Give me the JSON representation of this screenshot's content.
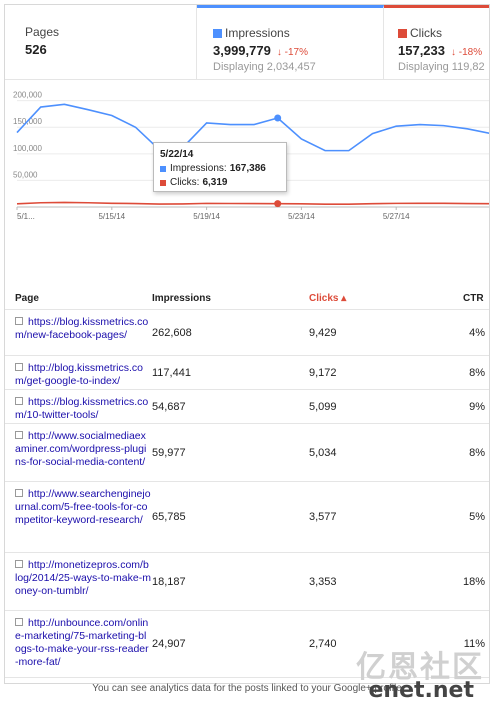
{
  "summary": {
    "pages": {
      "label": "Pages",
      "value": "526"
    },
    "impressions": {
      "label": "Impressions",
      "value": "3,999,779",
      "delta": "-17%",
      "displaying": "Displaying 2,034,457",
      "color": "#4d90fe"
    },
    "clicks": {
      "label": "Clicks",
      "value": "157,233",
      "delta": "-18%",
      "displaying": "Displaying 119,82",
      "color": "#dd4b39"
    }
  },
  "chart_data": {
    "type": "line",
    "x": [
      "5/11/14",
      "5/12/14",
      "5/13/14",
      "5/14/14",
      "5/15/14",
      "5/16/14",
      "5/17/14",
      "5/18/14",
      "5/19/14",
      "5/20/14",
      "5/21/14",
      "5/22/14",
      "5/23/14",
      "5/24/14",
      "5/25/14",
      "5/26/14",
      "5/27/14",
      "5/28/14",
      "5/29/14",
      "5/30/14",
      "5/31/14"
    ],
    "tick_labels": [
      "5/1...",
      "5/15/14",
      "5/19/14",
      "5/23/14",
      "5/27/14"
    ],
    "y_ticks": [
      "200,000",
      "150,000",
      "100,000",
      "50,000"
    ],
    "ylim": [
      0,
      220000
    ],
    "series": [
      {
        "name": "Impressions",
        "color": "#4d90fe",
        "values": [
          140000,
          188000,
          193000,
          183000,
          172000,
          150000,
          108000,
          112000,
          158000,
          155000,
          155000,
          167386,
          128000,
          106000,
          106000,
          138000,
          152000,
          155000,
          153000,
          147000,
          138000
        ]
      },
      {
        "name": "Clicks",
        "color": "#dd4b39",
        "values": [
          6000,
          8000,
          8500,
          8000,
          7000,
          6500,
          5500,
          5800,
          6800,
          6600,
          6400,
          6319,
          6000,
          5200,
          5300,
          6200,
          6800,
          7000,
          6900,
          6500,
          6200
        ]
      }
    ],
    "highlight_index": 11
  },
  "tooltip": {
    "date": "5/22/14",
    "impressions_label": "Impressions:",
    "impressions_value": "167,386",
    "clicks_label": "Clicks:",
    "clicks_value": "6,319"
  },
  "table": {
    "headers": {
      "page": "Page",
      "impressions": "Impressions",
      "clicks": "Clicks ▴",
      "ctr": "CTR"
    },
    "rows": [
      {
        "page": "https://blog.kissmetrics.com/new-facebook-pages/",
        "impressions": "262,608",
        "clicks": "9,429",
        "ctr": "4%"
      },
      {
        "page": "http://blog.kissmetrics.com/get-google-to-index/",
        "impressions": "117,441",
        "clicks": "9,172",
        "ctr": "8%"
      },
      {
        "page": "https://blog.kissmetrics.com/10-twitter-tools/",
        "impressions": "54,687",
        "clicks": "5,099",
        "ctr": "9%"
      },
      {
        "page": "http://www.socialmediaexaminer.com/wordpress-plugins-for-social-media-content/",
        "impressions": "59,977",
        "clicks": "5,034",
        "ctr": "8%"
      },
      {
        "page": "http://www.searchenginejournal.com/5-free-tools-for-competitor-keyword-research/",
        "impressions": "65,785",
        "clicks": "3,577",
        "ctr": "5%"
      },
      {
        "page": "http://monetizepros.com/blog/2014/25-ways-to-make-money-on-tumblr/",
        "impressions": "18,187",
        "clicks": "3,353",
        "ctr": "18%"
      },
      {
        "page": "http://unbounce.com/online-marketing/75-marketing-blogs-to-make-your-rss-reader-more-fat/",
        "impressions": "24,907",
        "clicks": "2,740",
        "ctr": "11%"
      }
    ]
  },
  "footer": "You can see analytics data for the posts linked to your Google+ profile",
  "watermark": {
    "cn": "亿恩社区",
    "en": "enet.net"
  }
}
